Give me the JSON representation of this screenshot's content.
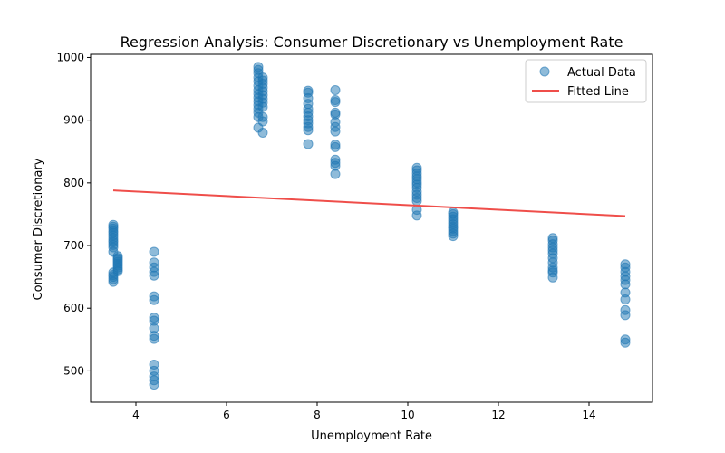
{
  "chart_data": {
    "type": "scatter",
    "title": "Regression Analysis: Consumer Discretionary vs Unemployment Rate",
    "xlabel": "Unemployment Rate",
    "ylabel": "Consumer Discretionary",
    "xlim": [
      3.0,
      15.4
    ],
    "ylim": [
      450,
      1005
    ],
    "xticks": [
      4,
      6,
      8,
      10,
      12,
      14
    ],
    "yticks": [
      500,
      600,
      700,
      800,
      900,
      1000
    ],
    "grid": false,
    "legend_position": "top-right",
    "colors": {
      "points": "#1f77b4",
      "fitted_line": "#ef4e4a"
    },
    "series": [
      {
        "name": "Actual Data",
        "kind": "scatter",
        "points": [
          [
            3.5,
            733
          ],
          [
            3.5,
            730
          ],
          [
            3.5,
            727
          ],
          [
            3.5,
            723
          ],
          [
            3.5,
            720
          ],
          [
            3.5,
            716
          ],
          [
            3.5,
            712
          ],
          [
            3.5,
            708
          ],
          [
            3.5,
            705
          ],
          [
            3.5,
            701
          ],
          [
            3.5,
            697
          ],
          [
            3.5,
            690
          ],
          [
            3.5,
            657
          ],
          [
            3.5,
            653
          ],
          [
            3.5,
            650
          ],
          [
            3.5,
            646
          ],
          [
            3.5,
            642
          ],
          [
            3.6,
            683
          ],
          [
            3.6,
            680
          ],
          [
            3.6,
            677
          ],
          [
            3.6,
            674
          ],
          [
            3.6,
            671
          ],
          [
            3.6,
            668
          ],
          [
            3.6,
            665
          ],
          [
            3.6,
            662
          ],
          [
            3.6,
            659
          ],
          [
            4.4,
            690
          ],
          [
            4.4,
            673
          ],
          [
            4.4,
            665
          ],
          [
            4.4,
            658
          ],
          [
            4.4,
            652
          ],
          [
            4.4,
            619
          ],
          [
            4.4,
            613
          ],
          [
            4.4,
            585
          ],
          [
            4.4,
            580
          ],
          [
            4.4,
            568
          ],
          [
            4.4,
            556
          ],
          [
            4.4,
            551
          ],
          [
            4.4,
            510
          ],
          [
            4.4,
            500
          ],
          [
            4.4,
            491
          ],
          [
            4.4,
            485
          ],
          [
            4.4,
            478
          ],
          [
            6.7,
            985
          ],
          [
            6.7,
            980
          ],
          [
            6.7,
            975
          ],
          [
            6.7,
            968
          ],
          [
            6.7,
            962
          ],
          [
            6.7,
            955
          ],
          [
            6.7,
            948
          ],
          [
            6.7,
            942
          ],
          [
            6.7,
            936
          ],
          [
            6.7,
            930
          ],
          [
            6.7,
            924
          ],
          [
            6.7,
            918
          ],
          [
            6.7,
            912
          ],
          [
            6.7,
            905
          ],
          [
            6.7,
            888
          ],
          [
            6.8,
            968
          ],
          [
            6.8,
            963
          ],
          [
            6.8,
            958
          ],
          [
            6.8,
            952
          ],
          [
            6.8,
            946
          ],
          [
            6.8,
            940
          ],
          [
            6.8,
            934
          ],
          [
            6.8,
            928
          ],
          [
            6.8,
            921
          ],
          [
            6.8,
            905
          ],
          [
            6.8,
            898
          ],
          [
            6.8,
            880
          ],
          [
            7.8,
            947
          ],
          [
            7.8,
            944
          ],
          [
            7.8,
            935
          ],
          [
            7.8,
            926
          ],
          [
            7.8,
            918
          ],
          [
            7.8,
            912
          ],
          [
            7.8,
            906
          ],
          [
            7.8,
            900
          ],
          [
            7.8,
            895
          ],
          [
            7.8,
            889
          ],
          [
            7.8,
            884
          ],
          [
            7.8,
            862
          ],
          [
            8.4,
            948
          ],
          [
            8.4,
            932
          ],
          [
            8.4,
            929
          ],
          [
            8.4,
            912
          ],
          [
            8.4,
            909
          ],
          [
            8.4,
            897
          ],
          [
            8.4,
            889
          ],
          [
            8.4,
            882
          ],
          [
            8.4,
            861
          ],
          [
            8.4,
            857
          ],
          [
            8.4,
            837
          ],
          [
            8.4,
            832
          ],
          [
            8.4,
            827
          ],
          [
            8.4,
            814
          ],
          [
            10.2,
            824
          ],
          [
            10.2,
            820
          ],
          [
            10.2,
            815
          ],
          [
            10.2,
            810
          ],
          [
            10.2,
            806
          ],
          [
            10.2,
            801
          ],
          [
            10.2,
            797
          ],
          [
            10.2,
            792
          ],
          [
            10.2,
            786
          ],
          [
            10.2,
            781
          ],
          [
            10.2,
            776
          ],
          [
            10.2,
            771
          ],
          [
            10.2,
            757
          ],
          [
            10.2,
            748
          ],
          [
            11.0,
            753
          ],
          [
            11.0,
            750
          ],
          [
            11.0,
            746
          ],
          [
            11.0,
            742
          ],
          [
            11.0,
            738
          ],
          [
            11.0,
            734
          ],
          [
            11.0,
            730
          ],
          [
            11.0,
            727
          ],
          [
            11.0,
            723
          ],
          [
            11.0,
            719
          ],
          [
            11.0,
            715
          ],
          [
            13.2,
            712
          ],
          [
            13.2,
            708
          ],
          [
            13.2,
            702
          ],
          [
            13.2,
            697
          ],
          [
            13.2,
            692
          ],
          [
            13.2,
            687
          ],
          [
            13.2,
            680
          ],
          [
            13.2,
            673
          ],
          [
            13.2,
            665
          ],
          [
            13.2,
            660
          ],
          [
            13.2,
            657
          ],
          [
            13.2,
            649
          ],
          [
            14.8,
            670
          ],
          [
            14.8,
            665
          ],
          [
            14.8,
            658
          ],
          [
            14.8,
            651
          ],
          [
            14.8,
            645
          ],
          [
            14.8,
            638
          ],
          [
            14.8,
            625
          ],
          [
            14.8,
            614
          ],
          [
            14.8,
            597
          ],
          [
            14.8,
            589
          ],
          [
            14.8,
            550
          ],
          [
            14.8,
            545
          ]
        ]
      },
      {
        "name": "Fitted Line",
        "kind": "line",
        "points": [
          [
            3.5,
            788
          ],
          [
            14.8,
            747
          ]
        ]
      }
    ]
  }
}
